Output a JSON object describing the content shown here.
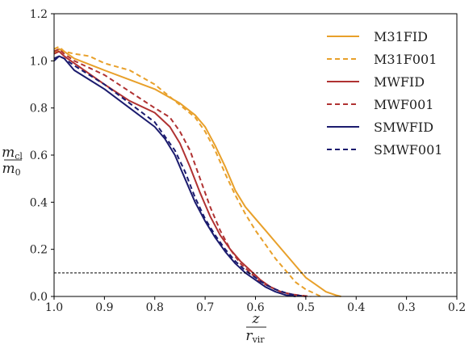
{
  "chart_data": {
    "type": "line",
    "xlabel": {
      "num": "z",
      "den": "r",
      "den_sub": "vir"
    },
    "ylabel": {
      "num": "m",
      "num_sub": "cl",
      "den": "m",
      "den_sub": "0"
    },
    "xlim": [
      1.0,
      0.2
    ],
    "ylim": [
      0.0,
      1.2
    ],
    "x_inverted": true,
    "xticks": [
      "1.0",
      "0.9",
      "0.8",
      "0.7",
      "0.6",
      "0.5",
      "0.4",
      "0.3",
      "0.2"
    ],
    "xtick_values": [
      1.0,
      0.9,
      0.8,
      0.7,
      0.6,
      0.5,
      0.4,
      0.3,
      0.2
    ],
    "yticks": [
      "0.0",
      "0.2",
      "0.4",
      "0.6",
      "0.8",
      "1.0",
      "1.2"
    ],
    "ytick_values": [
      0.0,
      0.2,
      0.4,
      0.6,
      0.8,
      1.0,
      1.2
    ],
    "grid": false,
    "legend_position": "top-right",
    "reference_line": {
      "y": 0.1,
      "style": "dashed",
      "color": "#000000"
    },
    "series": [
      {
        "name": "M31FID",
        "color": "#e8a02a",
        "dash": "solid",
        "x": [
          1.0,
          0.99,
          0.98,
          0.96,
          0.9,
          0.85,
          0.8,
          0.75,
          0.72,
          0.7,
          0.68,
          0.66,
          0.64,
          0.62,
          0.6,
          0.58,
          0.56,
          0.54,
          0.52,
          0.5,
          0.48,
          0.46,
          0.44,
          0.43
        ],
        "y": [
          1.03,
          1.05,
          1.04,
          1.01,
          0.96,
          0.92,
          0.88,
          0.82,
          0.77,
          0.72,
          0.64,
          0.55,
          0.45,
          0.38,
          0.33,
          0.28,
          0.23,
          0.18,
          0.13,
          0.08,
          0.05,
          0.02,
          0.005,
          0.0
        ]
      },
      {
        "name": "M31F001",
        "color": "#e8a02a",
        "dash": "dashed",
        "x": [
          1.0,
          0.99,
          0.98,
          0.96,
          0.93,
          0.9,
          0.85,
          0.8,
          0.76,
          0.72,
          0.7,
          0.68,
          0.66,
          0.64,
          0.62,
          0.6,
          0.58,
          0.56,
          0.54,
          0.52,
          0.5,
          0.48,
          0.47
        ],
        "y": [
          1.05,
          1.06,
          1.04,
          1.03,
          1.02,
          0.99,
          0.96,
          0.9,
          0.83,
          0.76,
          0.7,
          0.62,
          0.52,
          0.43,
          0.35,
          0.28,
          0.22,
          0.16,
          0.11,
          0.06,
          0.03,
          0.01,
          0.0
        ]
      },
      {
        "name": "MWFID",
        "color": "#b03232",
        "dash": "solid",
        "x": [
          1.0,
          0.99,
          0.98,
          0.96,
          0.9,
          0.85,
          0.8,
          0.77,
          0.75,
          0.73,
          0.71,
          0.69,
          0.67,
          0.65,
          0.63,
          0.61,
          0.59,
          0.57,
          0.55,
          0.53,
          0.51,
          0.5
        ],
        "y": [
          1.03,
          1.04,
          1.02,
          0.99,
          0.9,
          0.83,
          0.78,
          0.72,
          0.65,
          0.55,
          0.44,
          0.34,
          0.26,
          0.2,
          0.15,
          0.11,
          0.07,
          0.04,
          0.02,
          0.01,
          0.003,
          0.0
        ]
      },
      {
        "name": "MWF001",
        "color": "#b03232",
        "dash": "dashed",
        "x": [
          1.0,
          0.99,
          0.98,
          0.96,
          0.9,
          0.85,
          0.8,
          0.77,
          0.75,
          0.73,
          0.71,
          0.69,
          0.67,
          0.65,
          0.63,
          0.61,
          0.59,
          0.57,
          0.55,
          0.53,
          0.51,
          0.49
        ],
        "y": [
          1.04,
          1.05,
          1.03,
          1.0,
          0.94,
          0.87,
          0.8,
          0.76,
          0.7,
          0.62,
          0.5,
          0.38,
          0.28,
          0.2,
          0.14,
          0.1,
          0.06,
          0.04,
          0.02,
          0.01,
          0.004,
          0.0
        ]
      },
      {
        "name": "SMWFID",
        "color": "#1b1b6e",
        "dash": "solid",
        "x": [
          1.0,
          0.99,
          0.98,
          0.96,
          0.9,
          0.85,
          0.8,
          0.78,
          0.76,
          0.74,
          0.72,
          0.7,
          0.68,
          0.66,
          0.64,
          0.62,
          0.6,
          0.58,
          0.56,
          0.54,
          0.52
        ],
        "y": [
          1.0,
          1.02,
          1.01,
          0.96,
          0.88,
          0.8,
          0.72,
          0.67,
          0.6,
          0.5,
          0.4,
          0.32,
          0.25,
          0.19,
          0.14,
          0.1,
          0.07,
          0.04,
          0.02,
          0.006,
          0.0
        ]
      },
      {
        "name": "SMWF001",
        "color": "#1b1b6e",
        "dash": "dashed",
        "x": [
          1.0,
          0.99,
          0.98,
          0.96,
          0.9,
          0.85,
          0.8,
          0.78,
          0.76,
          0.74,
          0.72,
          0.7,
          0.68,
          0.66,
          0.64,
          0.62,
          0.6,
          0.58,
          0.56,
          0.54,
          0.52,
          0.5
        ],
        "y": [
          1.01,
          1.02,
          1.01,
          0.98,
          0.9,
          0.82,
          0.74,
          0.68,
          0.62,
          0.53,
          0.42,
          0.33,
          0.26,
          0.2,
          0.15,
          0.11,
          0.08,
          0.05,
          0.03,
          0.015,
          0.005,
          0.0
        ]
      }
    ]
  }
}
